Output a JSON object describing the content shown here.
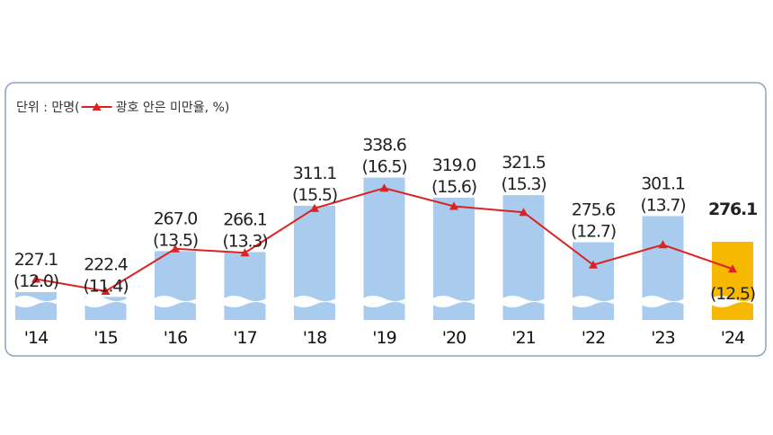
{
  "chart_data": {
    "type": "bar",
    "categories": [
      "'14",
      "'15",
      "'16",
      "'17",
      "'18",
      "'19",
      "'20",
      "'21",
      "'22",
      "'23",
      "'24"
    ],
    "series": [
      {
        "type": "bar",
        "values": [
          227.1,
          222.4,
          267.0,
          266.1,
          311.1,
          338.6,
          319.0,
          321.5,
          275.6,
          301.1,
          276.1
        ],
        "labels": [
          "227.1",
          "222.4",
          "267.0",
          "266.1",
          "311.1",
          "338.6",
          "319.0",
          "321.5",
          "275.6",
          "301.1",
          "276.1"
        ]
      },
      {
        "name": "광호 안은 미만율",
        "type": "line",
        "values": [
          12.0,
          11.4,
          13.5,
          13.3,
          15.5,
          16.5,
          15.6,
          15.3,
          12.7,
          13.7,
          12.5
        ],
        "labels": [
          "(12.0)",
          "(11.4)",
          "(13.5)",
          "(13.3)",
          "(15.5)",
          "(16.5)",
          "(15.6)",
          "(15.3)",
          "(12.7)",
          "(13.7)",
          "(12.5)"
        ]
      }
    ],
    "unit_prefix": "단위 : 만명(",
    "unit_suffix": "광호 안은 미만율, %)",
    "highlight_index": 10,
    "colors": {
      "bar": "#a9cbee",
      "bar_highlight": "#f6b800",
      "line": "#dd2222",
      "highlight_label": "#dd1111",
      "frame": "#8fa2be"
    },
    "break_marks": true
  }
}
